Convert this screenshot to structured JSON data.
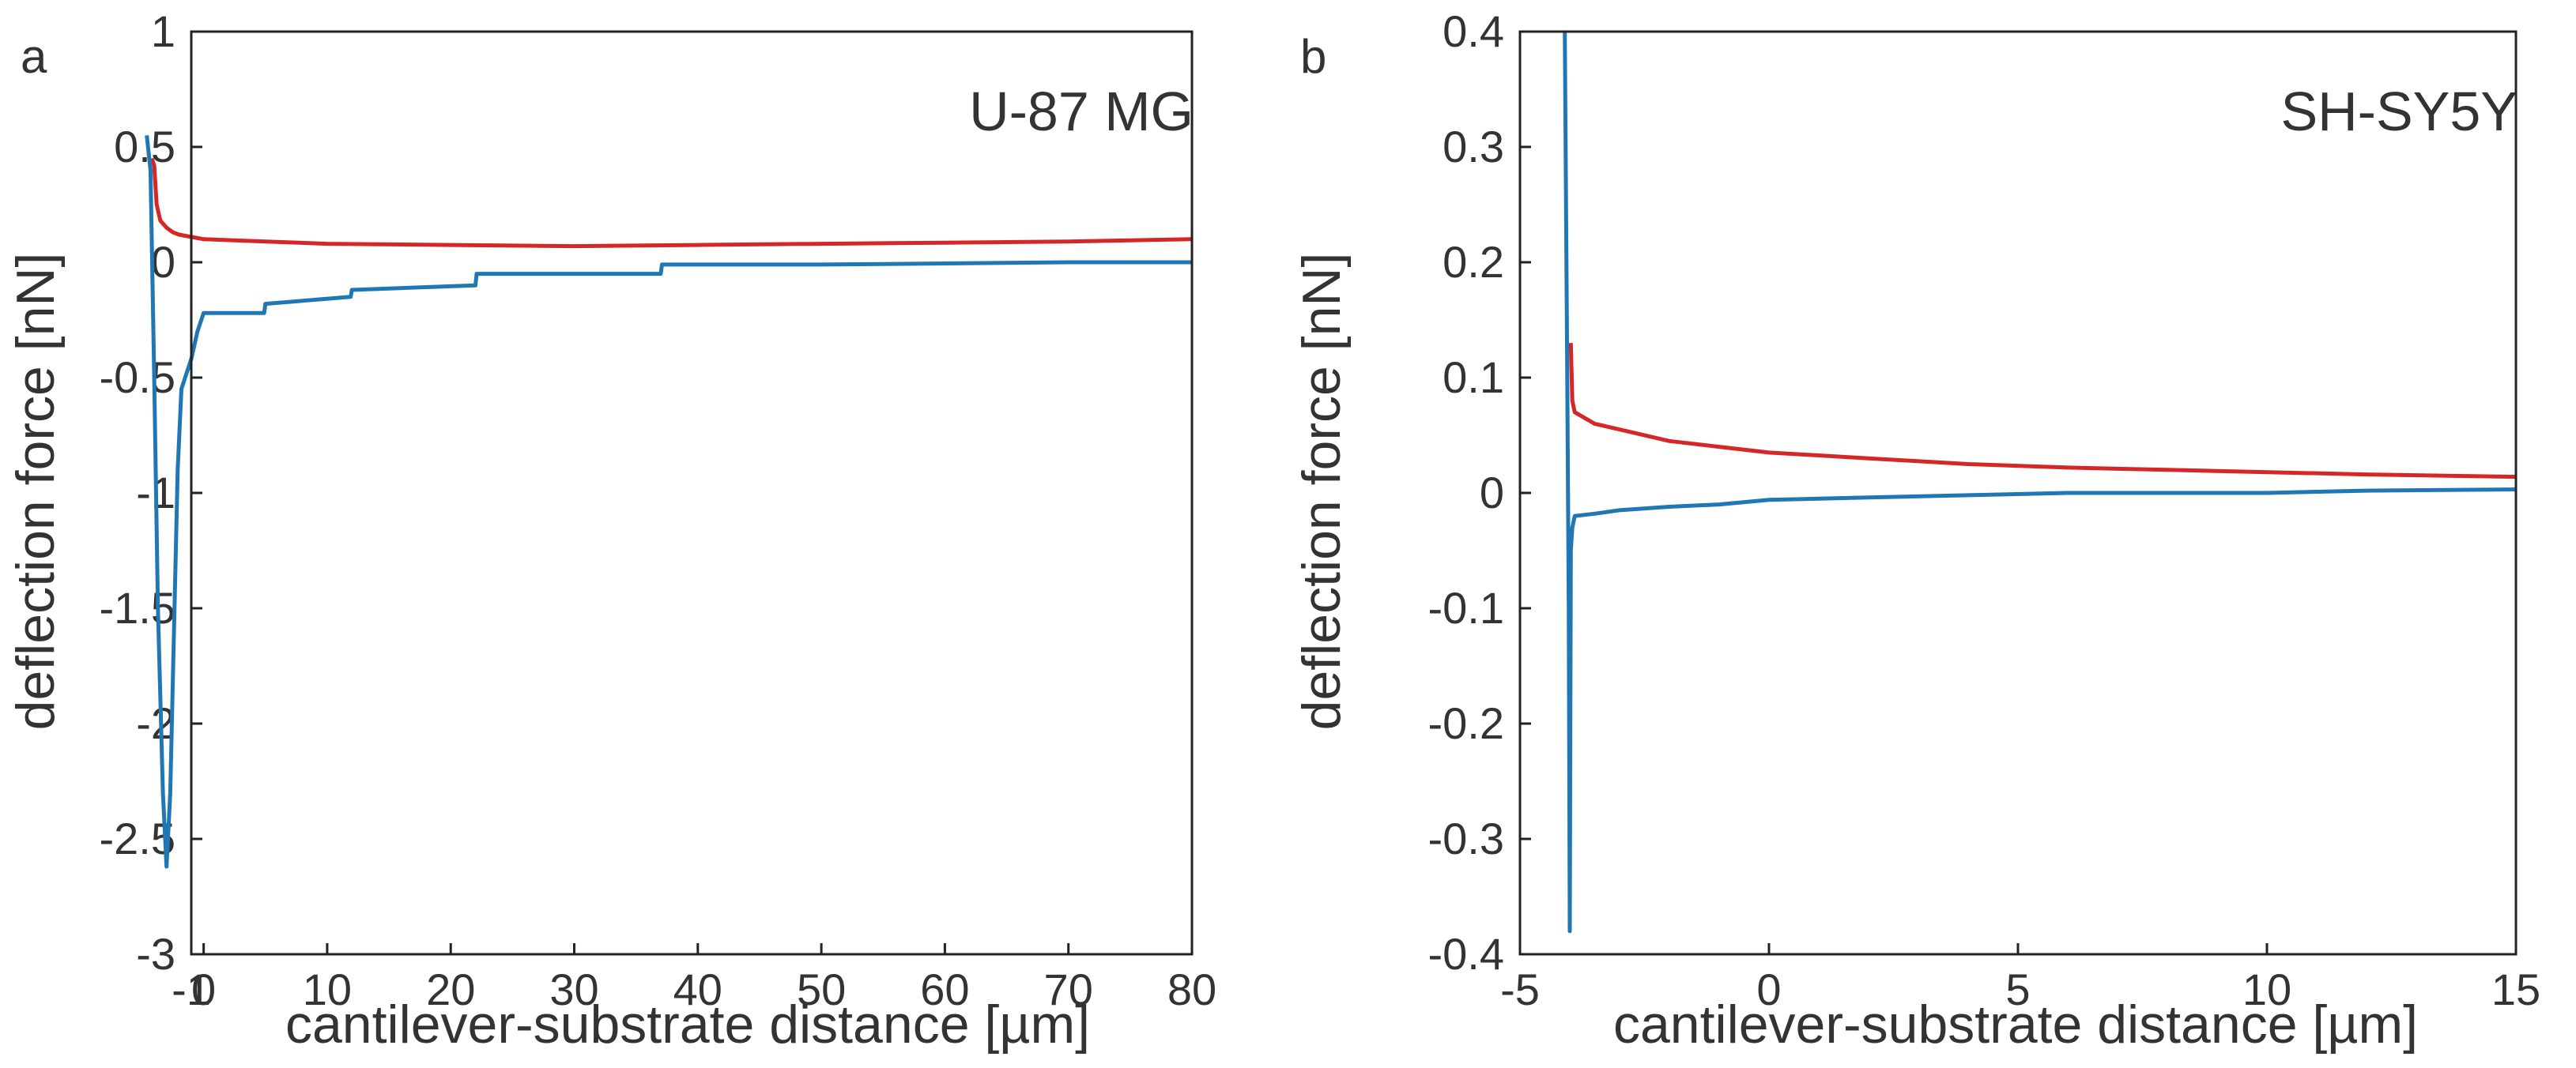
{
  "chart_data": [
    {
      "type": "line",
      "panel_letter": "a",
      "title": "U-87 MG",
      "xlabel": "cantilever-substrate distance [µm]",
      "ylabel": "deflection force [nN]",
      "xlim": [
        -1,
        80
      ],
      "ylim": [
        -3,
        1
      ],
      "xticks": [
        -1,
        0,
        10,
        20,
        30,
        40,
        50,
        60,
        70,
        80
      ],
      "yticks": [
        1,
        0.5,
        0,
        -0.5,
        -1,
        -1.5,
        -2,
        -2.5,
        -3
      ],
      "xtick_labels": [
        "-1",
        "0",
        "10",
        "20",
        "30",
        "40",
        "50",
        "60",
        "70",
        "80"
      ],
      "ytick_labels": [
        "1",
        "0.5",
        "0",
        "-0.5",
        "-1",
        "-1.5",
        "-2",
        "-2.5",
        "-3"
      ],
      "grid": false,
      "legend": "none",
      "series": [
        {
          "color": "#d62728",
          "x": [
            -4.2,
            -4.0,
            -3.8,
            -3.5,
            -3.0,
            -2.5,
            -2.0,
            0,
            5,
            10,
            20,
            30,
            40,
            50,
            60,
            70,
            80
          ],
          "y": [
            0.45,
            0.42,
            0.25,
            0.18,
            0.15,
            0.13,
            0.12,
            0.1,
            0.09,
            0.08,
            0.075,
            0.07,
            0.075,
            0.08,
            0.085,
            0.09,
            0.1
          ]
        },
        {
          "color": "#1f77b4",
          "x": [
            -4.6,
            -4.3,
            -4.0,
            -3.7,
            -3.3,
            -3.0,
            -2.7,
            -2.4,
            -2.1,
            -1.8,
            -1.5,
            -1.0,
            -0.5,
            0.0,
            4.9,
            5.0,
            11.9,
            12.0,
            22.0,
            22.1,
            37.0,
            37.1,
            50,
            60,
            70,
            80
          ],
          "y": [
            0.55,
            0.4,
            -0.5,
            -1.5,
            -2.3,
            -2.62,
            -2.3,
            -1.6,
            -0.9,
            -0.55,
            -0.5,
            -0.42,
            -0.3,
            -0.22,
            -0.22,
            -0.18,
            -0.15,
            -0.12,
            -0.1,
            -0.05,
            -0.05,
            -0.01,
            -0.01,
            -0.005,
            0.0,
            0.0
          ]
        }
      ]
    },
    {
      "type": "line",
      "panel_letter": "b",
      "title": "SH-SY5Y",
      "xlabel": "cantilever-substrate distance [µm]",
      "ylabel": "deflection force [nN]",
      "xlim": [
        -5,
        15
      ],
      "ylim": [
        -0.4,
        0.4
      ],
      "xticks": [
        -5,
        0,
        5,
        10,
        15
      ],
      "yticks": [
        0.4,
        0.3,
        0.2,
        0.1,
        0,
        -0.1,
        -0.2,
        -0.3,
        -0.4
      ],
      "xtick_labels": [
        "-5",
        "0",
        "5",
        "10",
        "15"
      ],
      "ytick_labels": [
        "0.4",
        "0.3",
        "0.2",
        "0.1",
        "0",
        "-0.1",
        "-0.2",
        "-0.3",
        "-0.4"
      ],
      "grid": false,
      "legend": "none",
      "series": [
        {
          "color": "#d62728",
          "x": [
            -3.98,
            -3.95,
            -3.9,
            -3.5,
            -3.0,
            -2.0,
            -1.0,
            0.0,
            2.0,
            4.0,
            6.0,
            8.0,
            10.0,
            12.0,
            15.0
          ],
          "y": [
            0.13,
            0.08,
            0.07,
            0.06,
            0.055,
            0.045,
            0.04,
            0.035,
            0.03,
            0.025,
            0.022,
            0.02,
            0.018,
            0.016,
            0.014
          ]
        },
        {
          "color": "#1f77b4",
          "x": [
            -4.1,
            -4.05,
            -4.02,
            -4.0,
            -3.98,
            -3.95,
            -3.9,
            -3.5,
            -3.0,
            -2.0,
            -1.0,
            0.0,
            2.0,
            4.0,
            6.0,
            8.0,
            10.0,
            12.0,
            15.0
          ],
          "y": [
            0.4,
            0.1,
            -0.1,
            -0.38,
            -0.05,
            -0.03,
            -0.02,
            -0.018,
            -0.015,
            -0.012,
            -0.01,
            -0.006,
            -0.004,
            -0.002,
            0.0,
            0.0,
            0.0,
            0.002,
            0.003
          ]
        }
      ]
    }
  ]
}
